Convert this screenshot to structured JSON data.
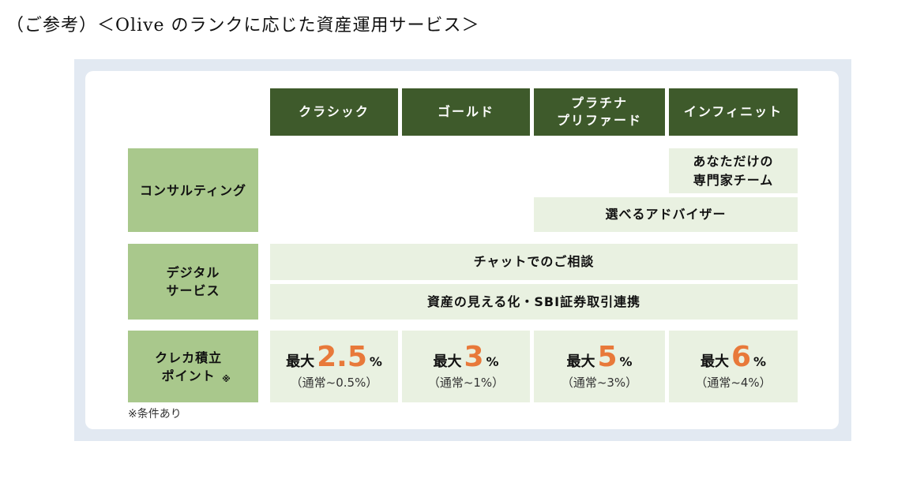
{
  "heading": "（ご参考）＜Olive のランクに応じた資産運用サービス＞",
  "columns": [
    "クラシック",
    "ゴールド",
    "プラチナ\nプリファード",
    "インフィニット"
  ],
  "rows": {
    "consulting": {
      "label": "コンサルティング",
      "infinite_only": "あなただけの\n専門家チーム",
      "platinum_up": "選べるアドバイザー"
    },
    "digital": {
      "label": "デジタル\nサービス",
      "all_1": "チャットでのご相談",
      "all_2": "資産の見える化・SBI証券取引連携"
    },
    "points": {
      "label": "クレカ積立\nポイント",
      "label_mark": "※",
      "cells": [
        {
          "prefix": "最大",
          "value": "2.5",
          "unit": "%",
          "normal": "（通常~0.5%）"
        },
        {
          "prefix": "最大",
          "value": "3",
          "unit": "%",
          "normal": "（通常~1%）"
        },
        {
          "prefix": "最大",
          "value": "5",
          "unit": "%",
          "normal": "（通常~3%）"
        },
        {
          "prefix": "最大",
          "value": "6",
          "unit": "%",
          "normal": "（通常~4%）"
        }
      ]
    }
  },
  "footnote": "※条件あり"
}
